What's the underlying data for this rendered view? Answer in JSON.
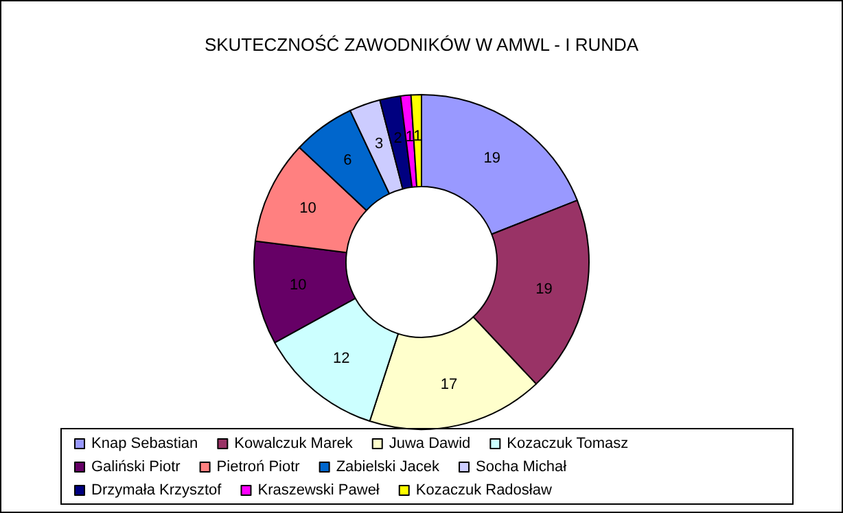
{
  "chart_data": {
    "type": "donut",
    "title": "SKUTECZNOŚĆ ZAWODNIKÓW W AMWL - I RUNDA",
    "categories": [
      "Knap Sebastian",
      "Kowalczuk Marek",
      "Juwa Dawid",
      "Kozaczuk Tomasz",
      "Galiński Piotr",
      "Pietroń Piotr",
      "Zabielski Jacek",
      "Socha Michał",
      "Drzymała Krzysztof",
      "Kraszewski Paweł",
      "Kozaczuk Radosław"
    ],
    "values": [
      19,
      19,
      17,
      12,
      10,
      10,
      6,
      3,
      2,
      1,
      1
    ],
    "colors": [
      "#9999ff",
      "#993366",
      "#ffffcc",
      "#ccffff",
      "#660066",
      "#ff8080",
      "#0066cc",
      "#ccccff",
      "#000080",
      "#ff00ff",
      "#ffff00"
    ],
    "data_labels": true,
    "legend": "bottom"
  }
}
